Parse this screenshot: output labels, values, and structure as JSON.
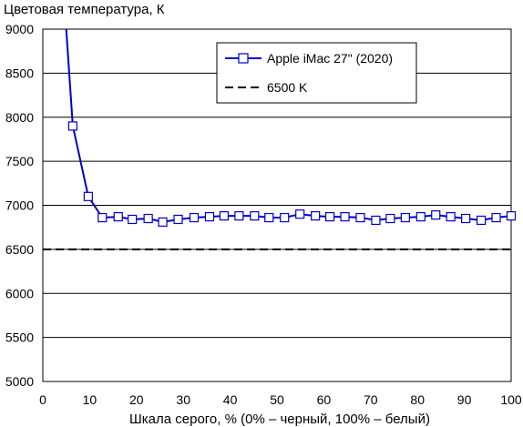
{
  "chart_data": {
    "type": "line",
    "ylabel": "Цветовая температура, К",
    "xlabel": "Шкала серого, % (0% – черный, 100% – белый)",
    "xlim": [
      0,
      100
    ],
    "ylim": [
      5000,
      9000
    ],
    "x_ticks": [
      0,
      10,
      20,
      30,
      40,
      50,
      60,
      70,
      80,
      90,
      100
    ],
    "y_ticks": [
      5000,
      5500,
      6000,
      6500,
      7000,
      7500,
      8000,
      8500,
      9000
    ],
    "grid": "horizontal",
    "legend_position": "top-right",
    "series": [
      {
        "name": "Apple iMac 27\" (2020)",
        "color": "#0000cc",
        "marker": "square",
        "x": [
          5.0,
          6.4,
          9.7,
          12.7,
          16.1,
          19.1,
          22.5,
          25.6,
          28.9,
          32.3,
          35.6,
          38.7,
          41.9,
          45.2,
          48.3,
          51.6,
          54.9,
          58.2,
          61.3,
          64.5,
          67.8,
          71.1,
          74.2,
          77.4,
          80.7,
          83.9,
          87.1,
          90.3,
          93.6,
          96.8,
          100
        ],
        "y": [
          9000,
          7900,
          7100,
          6860,
          6870,
          6840,
          6850,
          6810,
          6840,
          6860,
          6870,
          6880,
          6880,
          6880,
          6860,
          6860,
          6900,
          6880,
          6870,
          6870,
          6860,
          6830,
          6850,
          6860,
          6870,
          6890,
          6870,
          6850,
          6830,
          6860,
          6880
        ]
      },
      {
        "name": "6500 K",
        "color": "#000000",
        "style": "dashed",
        "x": [
          0,
          100
        ],
        "y": [
          6500,
          6500
        ]
      }
    ]
  }
}
